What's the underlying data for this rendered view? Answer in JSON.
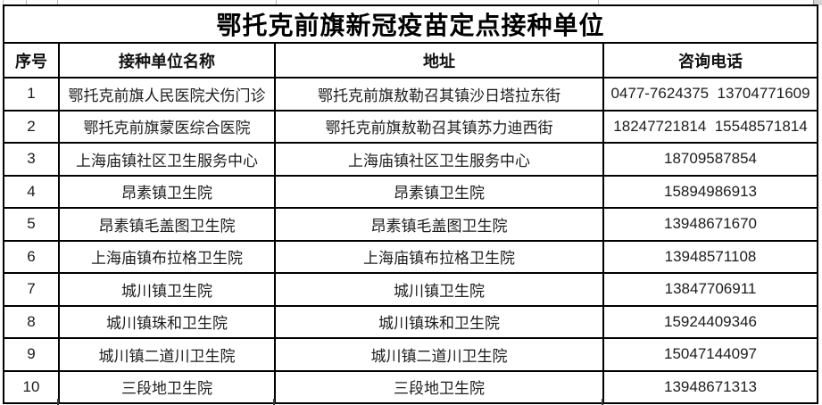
{
  "table": {
    "title": "鄂托克前旗新冠疫苗定点接种单位",
    "columns": [
      "序号",
      "接种单位名称",
      "地址",
      "咨询电话"
    ],
    "rows": [
      {
        "no": "1",
        "name": "鄂托克前旗人民医院犬伤门诊",
        "address": "鄂托克前旗敖勒召其镇沙日塔拉东街",
        "phone": "0477-7624375  13704771609"
      },
      {
        "no": "2",
        "name": "鄂托克前旗蒙医综合医院",
        "address": "鄂托克前旗敖勒召其镇苏力迪西街",
        "phone": "18247721814  15548571814"
      },
      {
        "no": "3",
        "name": "上海庙镇社区卫生服务中心",
        "address": "上海庙镇社区卫生服务中心",
        "phone": "18709587854"
      },
      {
        "no": "4",
        "name": "昂素镇卫生院",
        "address": "昂素镇卫生院",
        "phone": "15894986913"
      },
      {
        "no": "5",
        "name": "昂素镇毛盖图卫生院",
        "address": "昂素镇毛盖图卫生院",
        "phone": "13948671670"
      },
      {
        "no": "6",
        "name": "上海庙镇布拉格卫生院",
        "address": "上海庙镇布拉格卫生院",
        "phone": "13948571108"
      },
      {
        "no": "7",
        "name": "城川镇卫生院",
        "address": "城川镇卫生院",
        "phone": "13847706911"
      },
      {
        "no": "8",
        "name": "城川镇珠和卫生院",
        "address": "城川镇珠和卫生院",
        "phone": "15924409346"
      },
      {
        "no": "9",
        "name": "城川镇二道川卫生院",
        "address": "城川镇二道川卫生院",
        "phone": "15047144097"
      },
      {
        "no": "10",
        "name": "三段地卫生院",
        "address": "三段地卫生院",
        "phone": "13948671313"
      }
    ]
  },
  "colors": {
    "border": "#000000",
    "text": "#1c1c1c",
    "faint_gridline": "#b8b8b8",
    "corner_block": "#d4d4d4",
    "background": "#ffffff"
  }
}
